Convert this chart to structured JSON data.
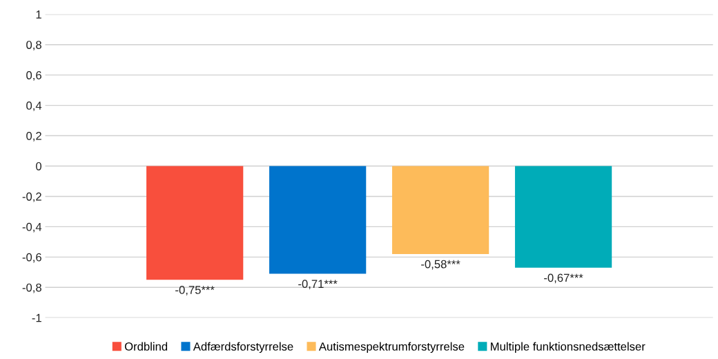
{
  "chart_data": {
    "type": "bar",
    "categories": [
      null
    ],
    "series": [
      {
        "name": "Ordblind",
        "color": "#f84f3d",
        "values": [
          -0.75
        ],
        "value_labels": [
          "-0,75***"
        ]
      },
      {
        "name": "Adfærdsforstyrrelse",
        "color": "#0074cc",
        "values": [
          -0.71
        ],
        "value_labels": [
          "-0,71***"
        ]
      },
      {
        "name": "Autismespektrumforstyrrelse",
        "color": "#fdbb5a",
        "values": [
          -0.58
        ],
        "value_labels": [
          "-0,58***"
        ]
      },
      {
        "name": "Multiple funktionsnedsættelser",
        "color": "#00acb8",
        "values": [
          -0.67
        ],
        "value_labels": [
          "-0,67***"
        ]
      }
    ],
    "ylim": [
      -1,
      1
    ],
    "yticks": [
      {
        "value": 1,
        "label": "1"
      },
      {
        "value": 0.8,
        "label": "0,8"
      },
      {
        "value": 0.6,
        "label": "0,6"
      },
      {
        "value": 0.4,
        "label": "0,4"
      },
      {
        "value": 0.2,
        "label": "0,2"
      },
      {
        "value": 0,
        "label": "0"
      },
      {
        "value": -0.2,
        "label": "-0,2"
      },
      {
        "value": -0.4,
        "label": "-0,4"
      },
      {
        "value": -0.6,
        "label": "-0,6"
      },
      {
        "value": -0.8,
        "label": "-0,8"
      },
      {
        "value": -1,
        "label": "-1"
      }
    ],
    "grid": "y",
    "legend": "bottom"
  }
}
